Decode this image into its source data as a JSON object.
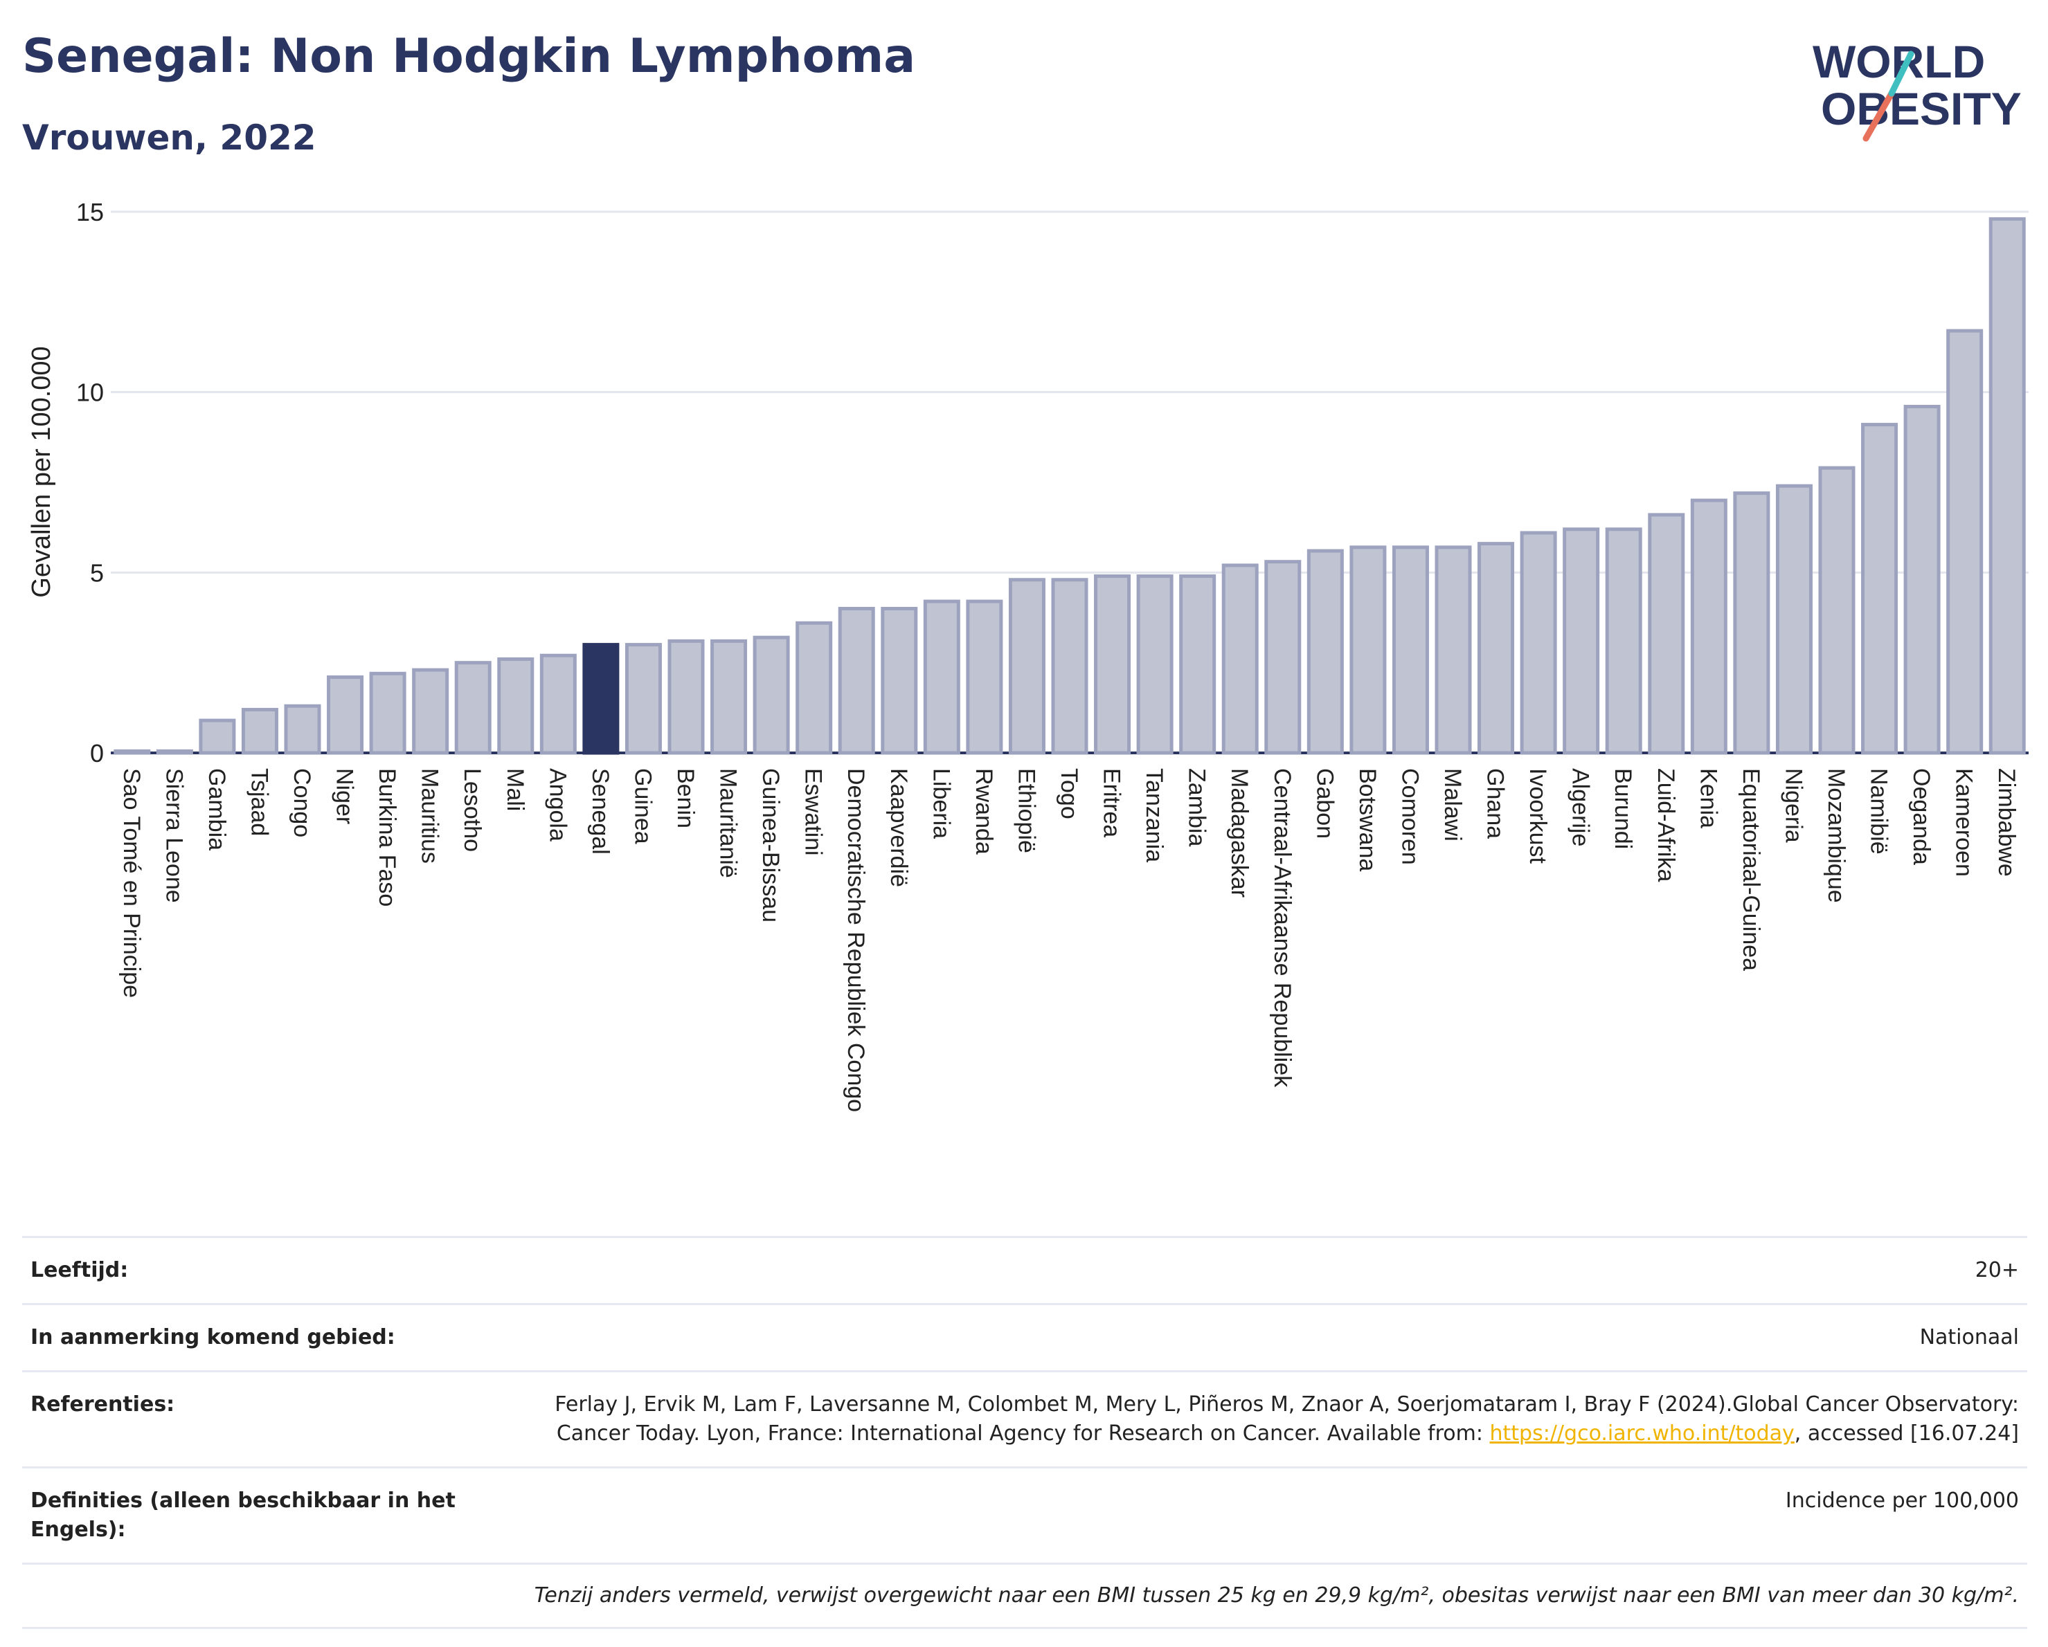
{
  "header": {
    "title": "Senegal: Non Hodgkin Lymphoma",
    "subtitle": "Vrouwen, 2022",
    "logo_line1": "WORLD",
    "logo_line2": "OBESITY"
  },
  "colors": {
    "bar": "#c0c4d2",
    "bar_border": "#9da3be",
    "highlight": "#2b3561",
    "title": "#2b3561",
    "link": "#f0b400"
  },
  "chart_data": {
    "type": "bar",
    "ylabel": "Gevallen per 100.000",
    "ylim": [
      0,
      15
    ],
    "yticks": [
      0,
      5,
      10,
      15
    ],
    "highlight": "Senegal",
    "grid": true,
    "categories": [
      "Sao Tomé en Principe",
      "Sierra Leone",
      "Gambia",
      "Tsjaad",
      "Congo",
      "Niger",
      "Burkina Faso",
      "Mauritius",
      "Lesotho",
      "Mali",
      "Angola",
      "Senegal",
      "Guinea",
      "Benin",
      "Mauritanië",
      "Guinea-Bissau",
      "Eswatini",
      "Democratische Republiek Congo",
      "Kaapverdië",
      "Liberia",
      "Rwanda",
      "Ethiopië",
      "Togo",
      "Eritrea",
      "Tanzania",
      "Zambia",
      "Madagaskar",
      "Centraal-Afrikaanse Republiek",
      "Gabon",
      "Botswana",
      "Comoren",
      "Malawi",
      "Ghana",
      "Ivoorkust",
      "Algerije",
      "Burundi",
      "Zuid-Afrika",
      "Kenia",
      "Equatoriaal-Guinea",
      "Nigeria",
      "Mozambique",
      "Namibië",
      "Oeganda",
      "Kameroen",
      "Zimbabwe"
    ],
    "values": [
      0.05,
      0.05,
      0.9,
      1.2,
      1.3,
      2.1,
      2.2,
      2.3,
      2.5,
      2.6,
      2.7,
      3.0,
      3.0,
      3.1,
      3.1,
      3.2,
      3.6,
      4.0,
      4.0,
      4.2,
      4.2,
      4.8,
      4.8,
      4.9,
      4.9,
      4.9,
      5.2,
      5.3,
      5.6,
      5.7,
      5.7,
      5.7,
      5.8,
      6.1,
      6.2,
      6.2,
      6.6,
      7.0,
      7.2,
      7.4,
      7.9,
      9.1,
      9.6,
      11.7,
      14.8
    ]
  },
  "info": {
    "age_label": "Leeftijd:",
    "age_value": "20+",
    "area_label": "In aanmerking komend gebied:",
    "area_value": "Nationaal",
    "ref_label": "Referenties:",
    "ref_text_1": "Ferlay J, Ervik M, Lam F, Laversanne M, Colombet M, Mery L, Piñeros M, Znaor A, Soerjomataram I, Bray F (2024).Global Cancer Observatory: Cancer Today. Lyon, France: International Agency for Research on Cancer. Available from: ",
    "ref_link": "https://gco.iarc.who.int/today",
    "ref_text_2": ", accessed [16.07.24]",
    "def_label": "Definities (alleen beschikbaar in het Engels):",
    "def_value": "Incidence per 100,000",
    "note": "Tenzij anders vermeld, verwijst overgewicht naar een BMI tussen 25 kg en 29,9 kg/m², obesitas verwijst naar een BMI van meer dan 30 kg/m²."
  }
}
